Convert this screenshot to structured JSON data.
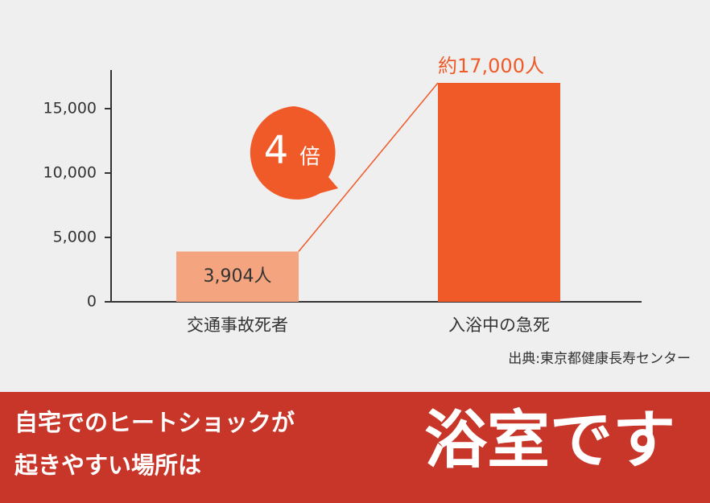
{
  "chart_data": {
    "type": "bar",
    "categories": [
      "交通事故死者",
      "入浴中の急死"
    ],
    "values": [
      3904,
      17000
    ],
    "value_labels": [
      "3,904人",
      "約17,000人"
    ],
    "colors": [
      "#f4a57f",
      "#f05a28"
    ],
    "ylim": [
      0,
      18000
    ],
    "yticks": [
      0,
      {
        "value": 5000,
        "label": "5,000"
      },
      {
        "value": 10000,
        "label": "10,000"
      },
      {
        "value": 15000,
        "label": "15,000"
      }
    ],
    "annotation_number": "4",
    "annotation_unit": "倍",
    "source": "出典:東京都健康長寿センター"
  },
  "banner": {
    "lines": [
      "自宅でのヒートショックが",
      "起きやすい場所は"
    ],
    "headline": "浴室です"
  }
}
